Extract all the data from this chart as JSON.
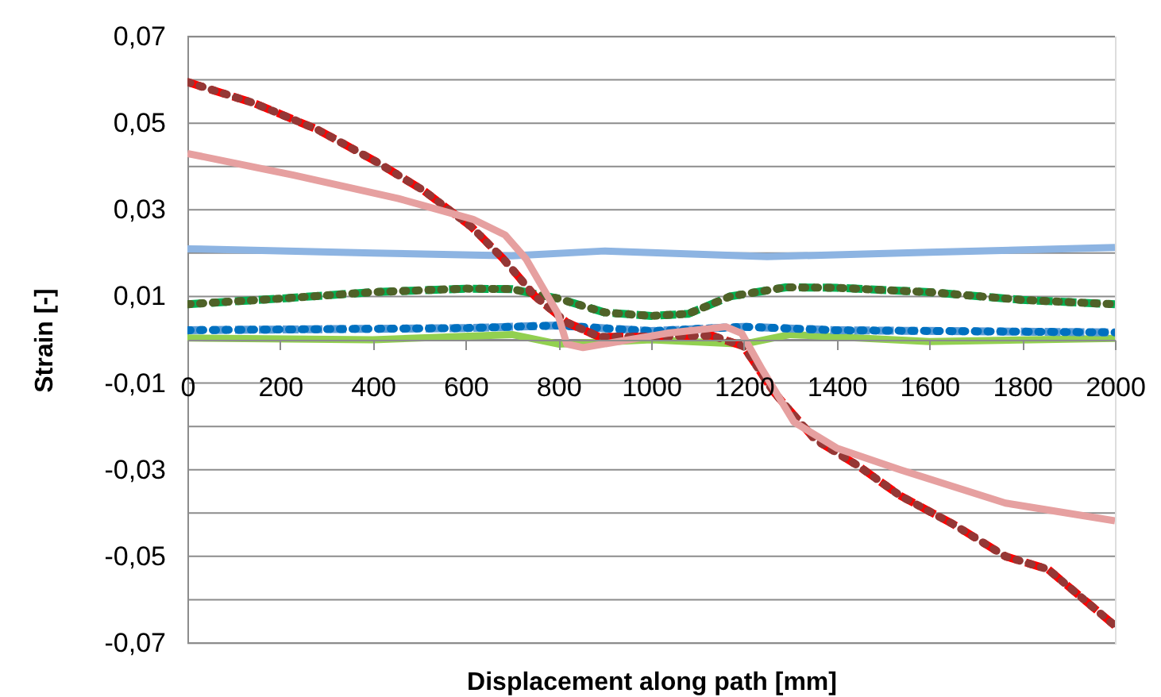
{
  "chart_data": {
    "type": "line",
    "xlabel": "Displacement along path [mm]",
    "ylabel": "Strain [-]",
    "xlim": [
      0,
      2000
    ],
    "xticks": [
      0,
      200,
      400,
      600,
      800,
      1000,
      1200,
      1400,
      1600,
      1800,
      2000
    ],
    "ylim": [
      -0.07,
      0.07
    ],
    "yticks": [
      {
        "value": -0.07,
        "label": "-0,07"
      },
      {
        "value": -0.06,
        "label": null
      },
      {
        "value": -0.05,
        "label": "-0,05"
      },
      {
        "value": -0.04,
        "label": null
      },
      {
        "value": -0.03,
        "label": "-0,03"
      },
      {
        "value": -0.02,
        "label": null
      },
      {
        "value": -0.01,
        "label": "-0,01"
      },
      {
        "value": 0,
        "label": null
      },
      {
        "value": 0.01,
        "label": "0,01"
      },
      {
        "value": 0.02,
        "label": null
      },
      {
        "value": 0.03,
        "label": "0,03"
      },
      {
        "value": 0.04,
        "label": null
      },
      {
        "value": 0.05,
        "label": "0,05"
      },
      {
        "value": 0.06,
        "label": null
      },
      {
        "value": 0.07,
        "label": "0,07"
      }
    ],
    "grid": "y",
    "legend": false,
    "marker": "none",
    "series": [
      {
        "color": "#8db4e2",
        "line_style": "solid",
        "x": [
          0,
          400,
          700,
          900,
          1250,
          1600,
          2000
        ],
        "values": [
          0.021,
          0.02,
          0.0194,
          0.0205,
          0.0192,
          0.0202,
          0.0213
        ]
      },
      {
        "color": "#92d050",
        "line_style": "solid",
        "x": [
          0,
          400,
          700,
          800,
          1000,
          1200,
          1300,
          1600,
          2000
        ],
        "values": [
          0.0004,
          0.0,
          0.0012,
          -0.001,
          0.0,
          -0.001,
          0.0012,
          -0.0004,
          0.0003
        ]
      },
      {
        "color": "#00b050",
        "line_style": "dashed",
        "x": [
          0,
          200,
          400,
          600,
          700,
          800,
          900,
          1000,
          1080,
          1170,
          1290,
          1400,
          1600,
          1800,
          2000
        ],
        "values": [
          0.0082,
          0.0095,
          0.011,
          0.0118,
          0.0117,
          0.0095,
          0.0063,
          0.0055,
          0.006,
          0.01,
          0.0121,
          0.012,
          0.011,
          0.0092,
          0.0082
        ]
      },
      {
        "color": "#4f6228",
        "line_style": "dotted",
        "x": [
          0,
          200,
          400,
          600,
          700,
          800,
          900,
          1000,
          1080,
          1170,
          1290,
          1400,
          1600,
          1800,
          2000
        ],
        "values": [
          0.0082,
          0.0095,
          0.011,
          0.0118,
          0.0117,
          0.0095,
          0.0063,
          0.0055,
          0.006,
          0.01,
          0.0121,
          0.012,
          0.011,
          0.0092,
          0.0082
        ]
      },
      {
        "color": "#5b9bd5",
        "line_style": "dashed",
        "x": [
          0,
          600,
          800,
          1000,
          1200,
          1400,
          2000
        ],
        "values": [
          0.0022,
          0.0027,
          0.0033,
          0.002,
          0.003,
          0.0022,
          0.0017
        ]
      },
      {
        "color": "#0070c0",
        "line_style": "dotted",
        "x": [
          0,
          600,
          800,
          1000,
          1200,
          1400,
          2000
        ],
        "values": [
          0.0022,
          0.0027,
          0.0033,
          0.002,
          0.003,
          0.0022,
          0.0017
        ]
      },
      {
        "color": "#ff0000",
        "line_style": "dashed",
        "x": [
          0,
          144,
          281,
          407,
          510,
          613,
          681,
          750,
          818,
          887,
          1000,
          1130,
          1199,
          1264,
          1353,
          1445,
          1537,
          1650,
          1764,
          1856,
          2000
        ],
        "values": [
          0.0595,
          0.0546,
          0.0485,
          0.0411,
          0.0344,
          0.026,
          0.0187,
          0.01,
          0.004,
          0.0007,
          0.0007,
          0.001,
          -0.0015,
          -0.012,
          -0.023,
          -0.029,
          -0.036,
          -0.0425,
          -0.05,
          -0.053,
          -0.066
        ]
      },
      {
        "color": "#953735",
        "line_style": "dotted",
        "x": [
          0,
          144,
          281,
          407,
          510,
          613,
          681,
          750,
          818,
          887,
          1000,
          1130,
          1199,
          1264,
          1353,
          1445,
          1537,
          1650,
          1764,
          1856,
          2000
        ],
        "values": [
          0.0595,
          0.0546,
          0.0485,
          0.0411,
          0.0344,
          0.026,
          0.0187,
          0.01,
          0.004,
          0.0007,
          0.0007,
          0.001,
          -0.0015,
          -0.012,
          -0.023,
          -0.029,
          -0.036,
          -0.0425,
          -0.05,
          -0.053,
          -0.066
        ]
      },
      {
        "color": "#e6a0a0",
        "line_style": "solid",
        "x": [
          0,
          229,
          455,
          616,
          685,
          730,
          798,
          818,
          853,
          1034,
          1161,
          1195,
          1240,
          1308,
          1400,
          1537,
          1764,
          2000
        ],
        "values": [
          0.043,
          0.038,
          0.0326,
          0.0278,
          0.0242,
          0.0187,
          0.0062,
          -0.001,
          -0.0018,
          0.0015,
          0.003,
          0.0015,
          -0.007,
          -0.019,
          -0.025,
          -0.03,
          -0.0377,
          -0.0418
        ]
      }
    ]
  }
}
